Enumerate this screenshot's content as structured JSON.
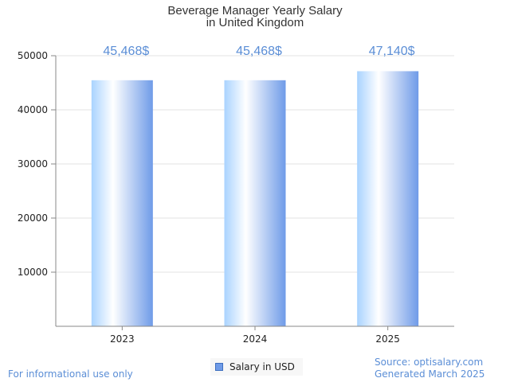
{
  "chart_data": {
    "type": "bar",
    "title": [
      "Beverage Manager Yearly Salary",
      "in United Kingdom"
    ],
    "categories": [
      "2023",
      "2024",
      "2025"
    ],
    "series": [
      {
        "name": "Salary in USD",
        "values": [
          45468,
          45468,
          47140
        ]
      }
    ],
    "data_labels": [
      "45,468$",
      "45,468$",
      "47,140$"
    ],
    "y_ticks": [
      10000,
      20000,
      30000,
      40000,
      50000
    ],
    "ylim": [
      0,
      50000
    ],
    "grid": true,
    "legend_position": "bottom",
    "bar_color": "#6f9be8"
  },
  "footer": {
    "disclaimer": "For informational use only",
    "source": "Source: optisalary.com",
    "generated": "Generated March 2025"
  }
}
